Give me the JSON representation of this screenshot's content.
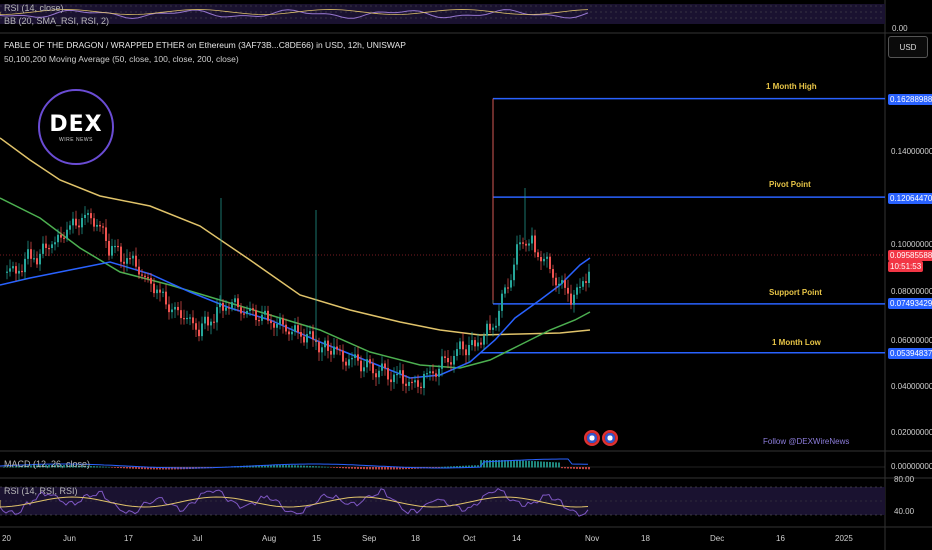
{
  "top_indicators": {
    "rsi_label": "RSI (14, close)",
    "bb_label": "BB (20, SMA_RSI, RSI, 2)",
    "top_price": "0.00"
  },
  "header": {
    "title": "FABLE OF THE DRAGON / WRAPPED ETHER on Ethereum (3AF73B...C8DE66) in USD, 12h, UNISWAP",
    "ma_label": "50,100,200 Moving Average (50, close, 100, close, 200, close)"
  },
  "currency_button": "USD",
  "logo": {
    "main": "DEX",
    "sub": "WIRE NEWS"
  },
  "levels": [
    {
      "name": "1 Month High",
      "value": "0.16288988"
    },
    {
      "name": "Pivot Point",
      "value": "0.12064470"
    },
    {
      "name": "Support Point",
      "value": "0.07493429"
    },
    {
      "name": "1 Month Low",
      "value": "0.05394837"
    }
  ],
  "current_price": {
    "value": "0.09585588",
    "countdown": "10:51:53"
  },
  "price_axis": [
    "0.14000000",
    "0.10000000",
    "0.08000000",
    "0.06000000",
    "0.04000000",
    "0.02000000"
  ],
  "follow_text": "Follow @DEXWireNews",
  "macd": {
    "label": "MACD (12, 26, close)",
    "axis_value": "0.00000000"
  },
  "rsi": {
    "label": "RSI (14, RSI, RSI)",
    "axis_top": "80.00",
    "axis_bottom": "40.00"
  },
  "x_axis": [
    "20",
    "Jun",
    "17",
    "Jul",
    "Aug",
    "15",
    "Sep",
    "18",
    "Oct",
    "14",
    "Nov",
    "18",
    "Dec",
    "16",
    "2025"
  ],
  "colors": {
    "level_line": "#2962ff",
    "level_label": "#e8c547",
    "up_candle": "#26a69a",
    "down_candle": "#ef5350",
    "ma50": "#2962ff",
    "ma100": "#4caf50",
    "ma200": "#e0c36a",
    "current_price": "#f23645"
  }
}
